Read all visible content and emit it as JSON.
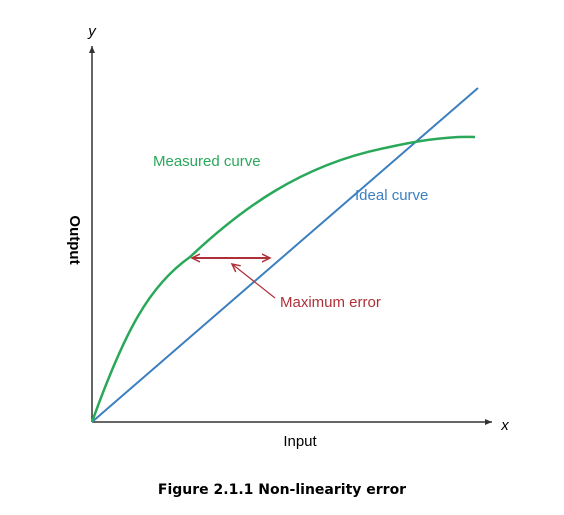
{
  "axes": {
    "y_label": "y",
    "x_label": "x",
    "vertical_title": "Output",
    "horizontal_title": "Input"
  },
  "curves": {
    "measured": "Measured curve",
    "ideal": "Ideal curve"
  },
  "annotation": "Maximum error",
  "caption": "Figure 2.1.1 Non-linearity error"
}
